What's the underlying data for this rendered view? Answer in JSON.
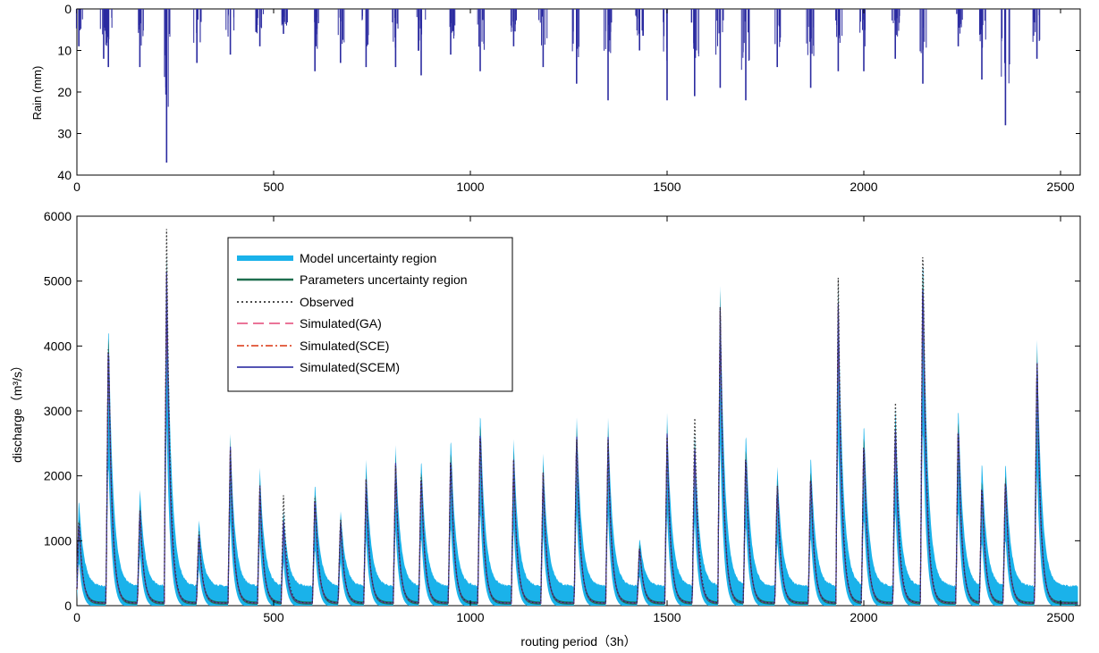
{
  "chart_data": [
    {
      "type": "bar",
      "ylabel": "Rain (mm)",
      "xlim": [
        0,
        2550
      ],
      "ylim": [
        0,
        40
      ],
      "y_inverted": true,
      "xticks": [
        0,
        500,
        1000,
        1500,
        2000,
        2500
      ],
      "yticks": [
        0,
        10,
        20,
        30,
        40
      ],
      "grid": false,
      "colors": {
        "bars": "#2b2ba0"
      },
      "events": [
        {
          "x": 5,
          "peak": 9
        },
        {
          "x": 68,
          "peak": 12
        },
        {
          "x": 80,
          "peak": 14
        },
        {
          "x": 160,
          "peak": 14
        },
        {
          "x": 228,
          "peak": 37
        },
        {
          "x": 305,
          "peak": 13
        },
        {
          "x": 390,
          "peak": 11
        },
        {
          "x": 465,
          "peak": 9
        },
        {
          "x": 525,
          "peak": 6
        },
        {
          "x": 605,
          "peak": 15
        },
        {
          "x": 670,
          "peak": 13
        },
        {
          "x": 735,
          "peak": 14
        },
        {
          "x": 810,
          "peak": 14
        },
        {
          "x": 875,
          "peak": 16
        },
        {
          "x": 950,
          "peak": 11
        },
        {
          "x": 1025,
          "peak": 15
        },
        {
          "x": 1110,
          "peak": 9
        },
        {
          "x": 1185,
          "peak": 14
        },
        {
          "x": 1270,
          "peak": 18
        },
        {
          "x": 1350,
          "peak": 22
        },
        {
          "x": 1430,
          "peak": 10
        },
        {
          "x": 1500,
          "peak": 22
        },
        {
          "x": 1570,
          "peak": 21
        },
        {
          "x": 1635,
          "peak": 19
        },
        {
          "x": 1700,
          "peak": 22
        },
        {
          "x": 1780,
          "peak": 14
        },
        {
          "x": 1865,
          "peak": 19
        },
        {
          "x": 1935,
          "peak": 15
        },
        {
          "x": 2000,
          "peak": 15
        },
        {
          "x": 2080,
          "peak": 12
        },
        {
          "x": 2150,
          "peak": 18
        },
        {
          "x": 2240,
          "peak": 9
        },
        {
          "x": 2300,
          "peak": 17
        },
        {
          "x": 2360,
          "peak": 28
        },
        {
          "x": 2440,
          "peak": 12
        }
      ]
    },
    {
      "type": "line",
      "xlabel": "routing period（3h）",
      "ylabel": "discharge（m³/s）",
      "xlim": [
        0,
        2550
      ],
      "ylim": [
        0,
        6000
      ],
      "xticks": [
        0,
        500,
        1000,
        1500,
        2000,
        2500
      ],
      "yticks": [
        0,
        1000,
        2000,
        3000,
        4000,
        5000,
        6000
      ],
      "grid": false,
      "legend_position": "top-left",
      "legend": [
        "Model uncertainty region",
        "Parameters uncertainty region",
        "Observed",
        "Simulated(GA)",
        "Simulated(SCE)",
        "Simulated(SCEM)"
      ],
      "colors": {
        "model_region": "#1ab2ea",
        "parameter_region": "#1e6e4e",
        "observed": "#333333",
        "ga": "#e8608a",
        "sce": "#e05030",
        "scem": "#3b3ba8"
      },
      "peaks": [
        {
          "x": 5,
          "observed": 1400,
          "model_upper": 1700,
          "simulated": 1350
        },
        {
          "x": 80,
          "observed": 4300,
          "model_upper": 4530,
          "simulated": 4250
        },
        {
          "x": 160,
          "observed": 1550,
          "model_upper": 1860,
          "simulated": 1550
        },
        {
          "x": 228,
          "observed": 5800,
          "model_upper": 5450,
          "simulated": 5150
        },
        {
          "x": 310,
          "observed": 1200,
          "model_upper": 1360,
          "simulated": 1150
        },
        {
          "x": 390,
          "observed": 2400,
          "model_upper": 2660,
          "simulated": 2450
        },
        {
          "x": 465,
          "observed": 1850,
          "model_upper": 2120,
          "simulated": 1850
        },
        {
          "x": 525,
          "observed": 1700,
          "model_upper": 1480,
          "simulated": 1300
        },
        {
          "x": 605,
          "observed": 1800,
          "model_upper": 1960,
          "simulated": 1750
        },
        {
          "x": 670,
          "observed": 1400,
          "model_upper": 1520,
          "simulated": 1350
        },
        {
          "x": 735,
          "observed": 1950,
          "model_upper": 2250,
          "simulated": 1950
        },
        {
          "x": 810,
          "observed": 2150,
          "model_upper": 2460,
          "simulated": 2200
        },
        {
          "x": 875,
          "observed": 2150,
          "model_upper": 2360,
          "simulated": 2100
        },
        {
          "x": 950,
          "observed": 2400,
          "model_upper": 2700,
          "simulated": 2400
        },
        {
          "x": 1025,
          "observed": 2800,
          "model_upper": 3120,
          "simulated": 2850
        },
        {
          "x": 1110,
          "observed": 2250,
          "model_upper": 2580,
          "simulated": 2250
        },
        {
          "x": 1185,
          "observed": 2050,
          "model_upper": 2340,
          "simulated": 2050
        },
        {
          "x": 1270,
          "observed": 2700,
          "model_upper": 3020,
          "simulated": 2750
        },
        {
          "x": 1350,
          "observed": 2550,
          "model_upper": 2900,
          "simulated": 2600
        },
        {
          "x": 1430,
          "observed": 950,
          "model_upper": 1080,
          "simulated": 950
        },
        {
          "x": 1500,
          "observed": 2600,
          "model_upper": 2960,
          "simulated": 2650
        },
        {
          "x": 1570,
          "observed": 3050,
          "model_upper": 2750,
          "simulated": 2550
        },
        {
          "x": 1635,
          "observed": 4600,
          "model_upper": 4920,
          "simulated": 4600
        },
        {
          "x": 1700,
          "observed": 2450,
          "model_upper": 2780,
          "simulated": 2450
        },
        {
          "x": 1780,
          "observed": 1950,
          "model_upper": 2220,
          "simulated": 1950
        },
        {
          "x": 1865,
          "observed": 2100,
          "model_upper": 2410,
          "simulated": 2100
        },
        {
          "x": 1935,
          "observed": 5050,
          "model_upper": 4980,
          "simulated": 4650
        },
        {
          "x": 2000,
          "observed": 2650,
          "model_upper": 2960,
          "simulated": 2650
        },
        {
          "x": 2080,
          "observed": 3300,
          "model_upper": 3180,
          "simulated": 2850
        },
        {
          "x": 2150,
          "observed": 5850,
          "model_upper": 5650,
          "simulated": 5300
        },
        {
          "x": 2240,
          "observed": 2900,
          "model_upper": 3200,
          "simulated": 2900
        },
        {
          "x": 2300,
          "observed": 1950,
          "model_upper": 2320,
          "simulated": 1950
        },
        {
          "x": 2360,
          "observed": 2050,
          "model_upper": 2320,
          "simulated": 2050
        },
        {
          "x": 2440,
          "observed": 3950,
          "model_upper": 4260,
          "simulated": 3950
        }
      ]
    }
  ]
}
